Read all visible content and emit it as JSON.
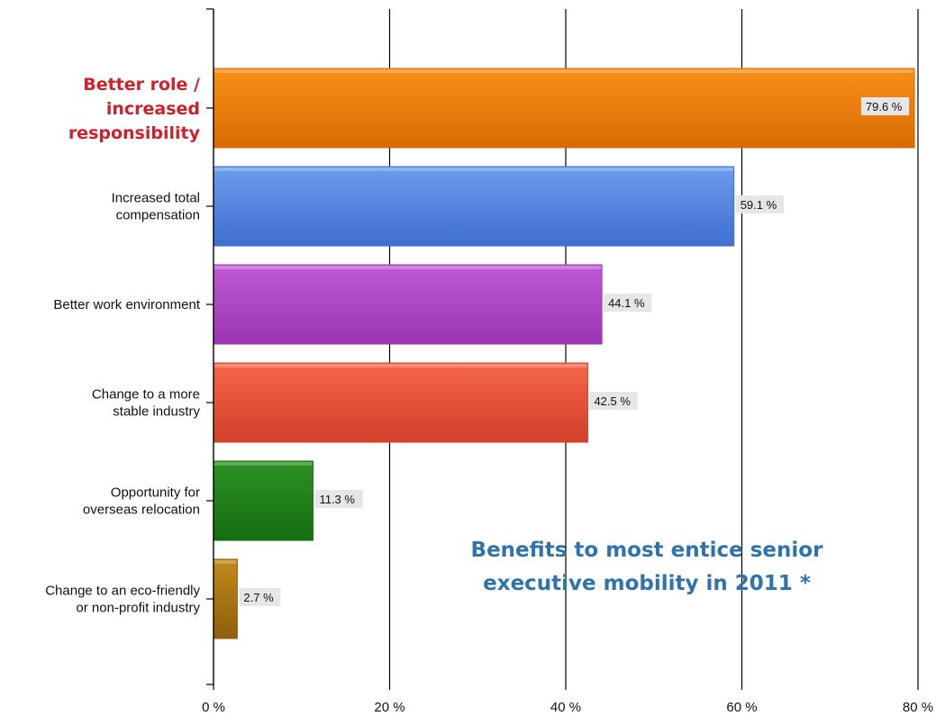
{
  "chart_data": {
    "type": "bar",
    "orientation": "horizontal",
    "categories": [
      [
        "Better role /",
        "increased",
        "responsibility"
      ],
      [
        "Increased total",
        "compensation"
      ],
      [
        "Better work environment"
      ],
      [
        "Change to a more",
        "stable industry"
      ],
      [
        "Opportunity for",
        "overseas relocation"
      ],
      [
        "Change to an eco-friendly",
        "or non-profit industry"
      ]
    ],
    "values": [
      79.6,
      59.1,
      44.1,
      42.5,
      11.3,
      2.7
    ],
    "data_labels": [
      "79.6 %",
      "59.1 %",
      "44.1 %",
      "42.5 %",
      "11.3 %",
      "2.7 %"
    ],
    "highlighted_category": 0,
    "bar_colors": [
      [
        "#f79019",
        "#d96a00"
      ],
      [
        "#6b9cec",
        "#3f6fd2"
      ],
      [
        "#c05ad6",
        "#9a34b2"
      ],
      [
        "#f4664a",
        "#d2402a"
      ],
      [
        "#2b9222",
        "#166e11"
      ],
      [
        "#c08a1a",
        "#8e5f0d"
      ]
    ],
    "xlim": [
      0,
      80
    ],
    "xticks": [
      0,
      20,
      40,
      60,
      80
    ],
    "xtick_labels": [
      "0 %",
      "20 %",
      "40 %",
      "60 %",
      "80 %"
    ],
    "grid": true,
    "annotation": [
      "Benefits to most entice senior",
      "executive mobility in 2011 *"
    ],
    "colors": {
      "highlight_label": "#d0202a",
      "annotation": "#2f73ad"
    }
  }
}
